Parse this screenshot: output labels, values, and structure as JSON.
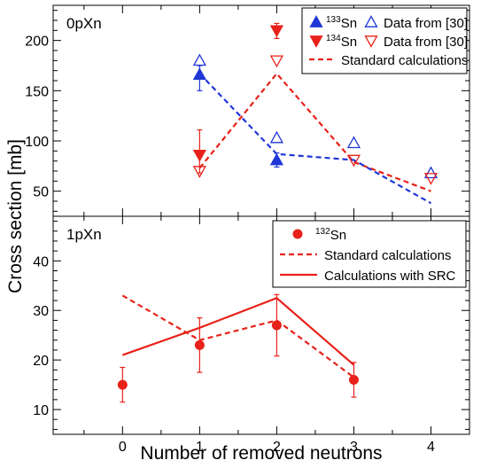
{
  "chart_data": [
    {
      "panel_label": "0pXn",
      "type": "scatter",
      "xlim": [
        -0.9,
        4.5
      ],
      "ylim": [
        25,
        235
      ],
      "yticks": [
        50,
        100,
        150,
        200
      ],
      "grid": false,
      "legend_position": "top-right",
      "series": [
        {
          "name": "133Sn",
          "label_sup": "133",
          "label_base": "Sn",
          "kind": "points",
          "marker": "triangle-up-filled",
          "color": "#1f37d6",
          "points": [
            {
              "x": 1,
              "y": 166,
              "err_low": 16,
              "err_high": 9
            },
            {
              "x": 2,
              "y": 81,
              "err_low": 7,
              "err_high": 7
            }
          ]
        },
        {
          "name": "Data from [30]",
          "label": "Data from [30]",
          "kind": "points",
          "marker": "triangle-up-open",
          "color": "#1f37d6",
          "points": [
            {
              "x": 1,
              "y": 180
            },
            {
              "x": 2,
              "y": 103
            },
            {
              "x": 3,
              "y": 98
            },
            {
              "x": 4,
              "y": 68
            }
          ]
        },
        {
          "name": "134Sn",
          "label_sup": "134",
          "label_base": "Sn",
          "kind": "points",
          "marker": "triangle-down-filled",
          "color": "#e8221a",
          "points": [
            {
              "x": 1,
              "y": 86,
              "err_low": 18,
              "err_high": 25
            },
            {
              "x": 2,
              "y": 210,
              "err_low": 8,
              "err_high": 7
            }
          ]
        },
        {
          "name": "Data from [30]",
          "label": "Data from [30]",
          "kind": "points",
          "marker": "triangle-down-open",
          "color": "#e8221a",
          "points": [
            {
              "x": 1,
              "y": 70
            },
            {
              "x": 2,
              "y": 180
            },
            {
              "x": 3,
              "y": 81
            },
            {
              "x": 4,
              "y": 63
            }
          ]
        },
        {
          "name": "Standard calculations",
          "label": "Standard calculations",
          "kind": "line",
          "dash": true,
          "color": "#e8221a",
          "x": [
            1,
            2,
            3,
            4
          ],
          "y": [
            73,
            167,
            79,
            50
          ]
        },
        {
          "name": "Standard calculations (133Sn)",
          "kind": "line",
          "dash": true,
          "color": "#1f37d6",
          "in_legend": false,
          "x": [
            1,
            2,
            3,
            4
          ],
          "y": [
            167,
            87,
            81,
            38
          ]
        }
      ]
    },
    {
      "panel_label": "1pXn",
      "type": "scatter",
      "xlim": [
        -0.9,
        4.5
      ],
      "ylim": [
        5,
        49
      ],
      "yticks": [
        10,
        20,
        30,
        40
      ],
      "xticks": [
        0,
        1,
        2,
        3,
        4
      ],
      "xlabel": "Number of removed neutrons",
      "grid": false,
      "legend_position": "top-right",
      "series": [
        {
          "name": "132Sn",
          "label_sup": "132",
          "label_base": "Sn",
          "kind": "points",
          "marker": "circle-filled",
          "color": "#e8221a",
          "points": [
            {
              "x": 0,
              "y": 15,
              "err_low": 3.5,
              "err_high": 3.5
            },
            {
              "x": 1,
              "y": 23,
              "err_low": 5.5,
              "err_high": 5.5
            },
            {
              "x": 2,
              "y": 27,
              "err_low": 6.2,
              "err_high": 6.2
            },
            {
              "x": 3,
              "y": 16,
              "err_low": 3.5,
              "err_high": 3.5
            }
          ]
        },
        {
          "name": "Standard calculations",
          "label": "Standard calculations",
          "kind": "line",
          "dash": true,
          "color": "#e8221a",
          "x": [
            0,
            1,
            2,
            3
          ],
          "y": [
            33,
            24,
            28,
            16.5
          ]
        },
        {
          "name": "Calculations with SRC",
          "label": "Calculations with SRC",
          "kind": "line",
          "dash": false,
          "color": "#e8221a",
          "x": [
            0,
            1,
            2,
            3
          ],
          "y": [
            21,
            26.5,
            32.5,
            19
          ]
        }
      ]
    }
  ],
  "shared": {
    "ylabel": "Cross section [mb]"
  }
}
